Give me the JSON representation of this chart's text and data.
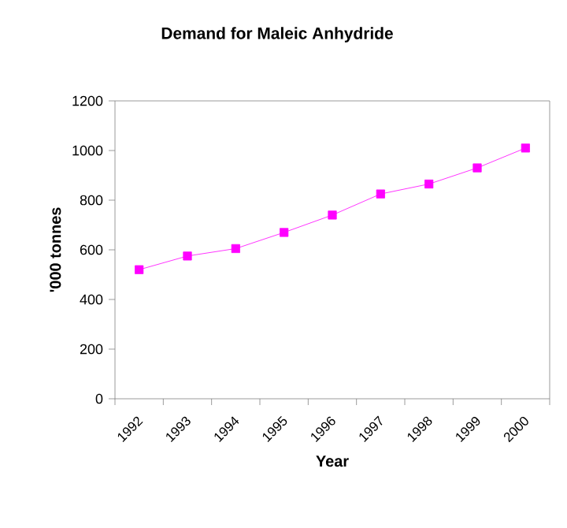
{
  "chart_data": {
    "type": "line",
    "title": "Demand for Maleic Anhydride",
    "xlabel": "Year",
    "ylabel": "'000 tonnes",
    "categories": [
      "1992",
      "1993",
      "1994",
      "1995",
      "1996",
      "1997",
      "1998",
      "1999",
      "2000"
    ],
    "series": [
      {
        "color": "#ff00ff",
        "values": [
          520,
          575,
          605,
          670,
          740,
          825,
          865,
          930,
          1010
        ]
      }
    ],
    "ylim": [
      0,
      1200
    ],
    "yticks": [
      0,
      200,
      400,
      600,
      800,
      1000,
      1200
    ],
    "marker": "square",
    "line_style": "solid"
  }
}
